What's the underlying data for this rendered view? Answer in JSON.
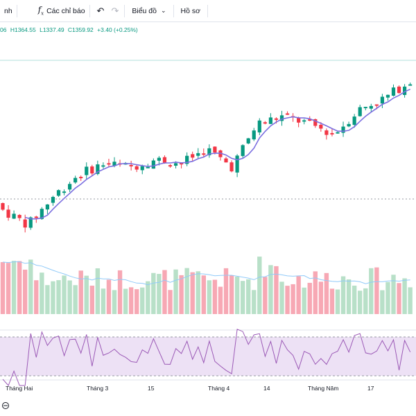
{
  "toolbar": {
    "item_cut": "nh",
    "indicators_label": "Các chỉ báo",
    "indicators_icon": "function-icon",
    "undo_icon": "undo-icon",
    "redo_icon": "redo-icon",
    "chart_label": "Biểu đồ",
    "profile_label": "Hồ sơ"
  },
  "ohlc": {
    "open_cut": "06",
    "high": "H1364.55",
    "low": "L1337.49",
    "close": "C1359.92",
    "change": "+3.40 (+0.25%)"
  },
  "colors": {
    "up": "#089981",
    "down": "#f23645",
    "up_volume": "#b8e0c8",
    "down_volume": "#f7a8b4",
    "ma_line": "#7b6fe0",
    "rsi_line": "#9b59b6",
    "rsi_band": "#ede1f5"
  },
  "x_axis": {
    "labels": [
      "Tháng Hai",
      "Tháng 3",
      "15",
      "Tháng 4",
      "14",
      "Tháng Năm",
      "17"
    ]
  },
  "chart_data": {
    "type": "candlestick",
    "price_series": {
      "approx_close_trend": [
        1180,
        1160,
        1200,
        1230,
        1245,
        1240,
        1250,
        1245,
        1265,
        1240,
        1300,
        1310,
        1300,
        1285,
        1320,
        1335,
        1360
      ]
    },
    "indicators": [
      "moving-average",
      "volume",
      "rsi"
    ],
    "rsi_levels": [
      70,
      30
    ]
  }
}
